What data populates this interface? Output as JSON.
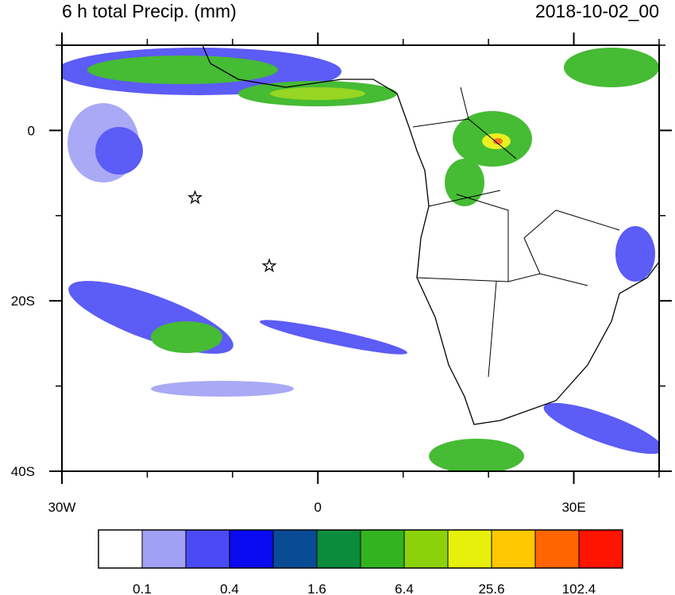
{
  "title_left": "6 h total Precip. (mm)",
  "title_right": "2018-10-02_00",
  "map": {
    "lon_range": [
      -30,
      40
    ],
    "lat_range": [
      -40,
      10
    ],
    "lon_ticks": [
      {
        "value": -30,
        "label": "30W"
      },
      0,
      {
        "value": 30,
        "label": "30E"
      }
    ],
    "lat_ticks": [
      0,
      {
        "value": -20,
        "label": "20S"
      },
      {
        "value": -40,
        "label": "40S"
      }
    ],
    "lon_minor_ticks": [
      -20,
      -10,
      10,
      20,
      40
    ],
    "lat_minor_ticks": [
      10,
      -10,
      -30
    ],
    "markers": [
      {
        "lon": -14.4,
        "lat": -7.9
      },
      {
        "lon": -5.7,
        "lat": -15.9
      }
    ]
  },
  "colorbar": {
    "colors": [
      "#ffffff",
      "#a0a0f5",
      "#4a4af5",
      "#0a0af0",
      "#0a4b96",
      "#0a8c3c",
      "#32b41e",
      "#8cd20a",
      "#e6f00a",
      "#ffc800",
      "#ff6400",
      "#ff1400"
    ],
    "labels": [
      0.1,
      0.4,
      1.6,
      6.4,
      25.6,
      102.4
    ]
  }
}
